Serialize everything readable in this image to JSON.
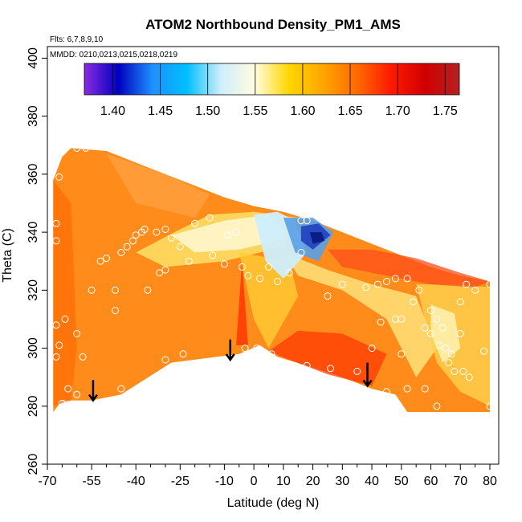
{
  "chart_data": {
    "type": "heatmap",
    "title": "ATOM2 Northbound Density_PM1_AMS",
    "subtitle_flights": "Flts: 6,7,8,9,10",
    "subtitle_dates": "MMDD: 0210,0213,0215,0218,0219",
    "xlabel": "Latitude (deg N)",
    "ylabel": "Theta (C)",
    "xlim": [
      -70,
      83
    ],
    "ylim": [
      260,
      404
    ],
    "x_ticks": [
      {
        "value": -70,
        "label": "-70"
      },
      {
        "value": -55,
        "label": "-55"
      },
      {
        "value": -40,
        "label": "-40"
      },
      {
        "value": -25,
        "label": "-25"
      },
      {
        "value": -10,
        "label": "-10"
      },
      {
        "value": 0,
        "label": "0"
      },
      {
        "value": 10,
        "label": "10"
      },
      {
        "value": 20,
        "label": "20"
      },
      {
        "value": 30,
        "label": "30"
      },
      {
        "value": 40,
        "label": "40"
      },
      {
        "value": 50,
        "label": "50"
      },
      {
        "value": 60,
        "label": "60"
      },
      {
        "value": 70,
        "label": "70"
      },
      {
        "value": 80,
        "label": "80"
      }
    ],
    "x_minor_ticks": [
      -65,
      -60,
      -50,
      -45,
      -35,
      -30,
      -20,
      -15,
      -5,
      5,
      15,
      25,
      35,
      45,
      55,
      65,
      75
    ],
    "y_ticks": [
      {
        "value": 260,
        "label": "260"
      },
      {
        "value": 280,
        "label": "280"
      },
      {
        "value": 300,
        "label": "300"
      },
      {
        "value": 320,
        "label": "320"
      },
      {
        "value": 340,
        "label": "340"
      },
      {
        "value": 360,
        "label": "360"
      },
      {
        "value": 380,
        "label": "380"
      },
      {
        "value": 400,
        "label": "400"
      }
    ],
    "colorbar": {
      "range": [
        1.37,
        1.765
      ],
      "ticks": [
        {
          "value": 1.4,
          "label": "1.40"
        },
        {
          "value": 1.45,
          "label": "1.45"
        },
        {
          "value": 1.5,
          "label": "1.50"
        },
        {
          "value": 1.55,
          "label": "1.55"
        },
        {
          "value": 1.6,
          "label": "1.60"
        },
        {
          "value": 1.65,
          "label": "1.65"
        },
        {
          "value": 1.7,
          "label": "1.70"
        },
        {
          "value": 1.75,
          "label": "1.75"
        }
      ],
      "colors": [
        "#8a2be2",
        "#0000c0",
        "#1e90ff",
        "#00bfff",
        "#cfeefc",
        "#fffde0",
        "#ffd700",
        "#ffa500",
        "#ff6a00",
        "#ff1a00",
        "#d00000",
        "#b22222"
      ]
    },
    "field_fill_color": "#ff8c1a",
    "envelope": {
      "top": [
        [
          -68,
          358
        ],
        [
          -65,
          366
        ],
        [
          -62,
          369
        ],
        [
          -50,
          368
        ],
        [
          -35,
          362
        ],
        [
          -20,
          356
        ],
        [
          -10,
          352
        ],
        [
          0,
          349
        ],
        [
          10,
          347
        ],
        [
          20,
          344
        ],
        [
          30,
          340
        ],
        [
          40,
          336
        ],
        [
          50,
          332
        ],
        [
          60,
          328
        ],
        [
          70,
          325
        ],
        [
          80,
          323
        ]
      ],
      "bottom": [
        [
          80,
          278
        ],
        [
          52,
          278
        ],
        [
          48,
          284
        ],
        [
          40,
          286
        ],
        [
          30,
          290
        ],
        [
          18,
          294
        ],
        [
          8,
          297
        ],
        [
          2,
          301
        ],
        [
          -5,
          298
        ],
        [
          -28,
          295
        ],
        [
          -45,
          284
        ],
        [
          -55,
          282
        ],
        [
          -65,
          282
        ],
        [
          -68,
          278
        ]
      ]
    },
    "patches": [
      {
        "color": "#ffe066",
        "opacity": 0.85,
        "points": [
          [
            -40,
            333
          ],
          [
            -25,
            341
          ],
          [
            -15,
            346
          ],
          [
            0,
            347
          ],
          [
            15,
            345
          ],
          [
            10,
            335
          ],
          [
            -10,
            330
          ],
          [
            -30,
            328
          ]
        ]
      },
      {
        "color": "#fff6cc",
        "opacity": 0.9,
        "points": [
          [
            -28,
            339
          ],
          [
            -10,
            344
          ],
          [
            5,
            346
          ],
          [
            12,
            338
          ],
          [
            -5,
            334
          ],
          [
            -20,
            333
          ]
        ]
      },
      {
        "color": "#ffcc33",
        "opacity": 0.8,
        "points": [
          [
            -5,
            333
          ],
          [
            0,
            310
          ],
          [
            5,
            300
          ],
          [
            15,
            318
          ],
          [
            12,
            330
          ]
        ]
      },
      {
        "color": "#ffe680",
        "opacity": 0.8,
        "points": [
          [
            10,
            333
          ],
          [
            25,
            327
          ],
          [
            40,
            322
          ],
          [
            55,
            318
          ],
          [
            62,
            300
          ],
          [
            55,
            290
          ],
          [
            45,
            310
          ],
          [
            30,
            320
          ],
          [
            15,
            325
          ]
        ]
      },
      {
        "color": "#ffd24d",
        "opacity": 0.8,
        "points": [
          [
            55,
            322
          ],
          [
            70,
            322
          ],
          [
            80,
            321
          ],
          [
            80,
            280
          ],
          [
            70,
            285
          ],
          [
            62,
            295
          ],
          [
            58,
            310
          ]
        ]
      },
      {
        "color": "#fff2b3",
        "opacity": 0.85,
        "points": [
          [
            60,
            315
          ],
          [
            68,
            312
          ],
          [
            70,
            300
          ],
          [
            64,
            295
          ],
          [
            60,
            305
          ]
        ]
      },
      {
        "color": "#ff4d1a",
        "opacity": 0.75,
        "points": [
          [
            25,
            334
          ],
          [
            40,
            334
          ],
          [
            55,
            331
          ],
          [
            70,
            326
          ],
          [
            80,
            323
          ],
          [
            75,
            321
          ],
          [
            60,
            322
          ],
          [
            45,
            325
          ],
          [
            30,
            328
          ]
        ]
      },
      {
        "color": "#ff2a00",
        "opacity": 0.75,
        "points": [
          [
            -6,
            301
          ],
          [
            -4,
            330
          ],
          [
            -2,
            301
          ]
        ]
      },
      {
        "color": "#ff3300",
        "opacity": 0.7,
        "points": [
          [
            5,
            299
          ],
          [
            15,
            306
          ],
          [
            30,
            305
          ],
          [
            45,
            298
          ],
          [
            40,
            287
          ],
          [
            25,
            291
          ],
          [
            12,
            296
          ]
        ]
      },
      {
        "color": "#ff6600",
        "opacity": 0.6,
        "points": [
          [
            -68,
            280
          ],
          [
            -68,
            358
          ],
          [
            -62,
            350
          ],
          [
            -60,
            300
          ],
          [
            -62,
            282
          ]
        ]
      },
      {
        "color": "#ffa64d",
        "opacity": 0.6,
        "points": [
          [
            -50,
            367
          ],
          [
            -30,
            360
          ],
          [
            -15,
            353
          ],
          [
            -20,
            345
          ],
          [
            -40,
            350
          ]
        ]
      },
      {
        "color": "#cfeefc",
        "opacity": 0.95,
        "points": [
          [
            0,
            346
          ],
          [
            8,
            347
          ],
          [
            14,
            344
          ],
          [
            18,
            333
          ],
          [
            10,
            324
          ],
          [
            4,
            330
          ]
        ]
      },
      {
        "color": "#5aa0e6",
        "opacity": 0.9,
        "points": [
          [
            10,
            345
          ],
          [
            20,
            345
          ],
          [
            27,
            340
          ],
          [
            22,
            330
          ],
          [
            14,
            333
          ]
        ]
      },
      {
        "color": "#2040c0",
        "opacity": 0.9,
        "points": [
          [
            16,
            342
          ],
          [
            22,
            343
          ],
          [
            26,
            339
          ],
          [
            20,
            334
          ],
          [
            16,
            337
          ]
        ]
      },
      {
        "color": "#0a1a80",
        "opacity": 0.9,
        "points": [
          [
            19,
            340
          ],
          [
            23,
            340
          ],
          [
            24,
            337
          ],
          [
            20,
            336
          ]
        ]
      }
    ],
    "points": [
      [
        -67,
        343
      ],
      [
        -67,
        337
      ],
      [
        -66,
        359
      ],
      [
        -64,
        369
      ],
      [
        -60,
        369
      ],
      [
        -57,
        369
      ],
      [
        -67,
        308
      ],
      [
        -67,
        297
      ],
      [
        -66,
        301
      ],
      [
        -64,
        310
      ],
      [
        -60,
        305
      ],
      [
        -58,
        297
      ],
      [
        -63,
        286
      ],
      [
        -65,
        281
      ],
      [
        -60,
        284
      ],
      [
        -55,
        320
      ],
      [
        -52,
        330
      ],
      [
        -50,
        331
      ],
      [
        -47,
        320
      ],
      [
        -47,
        313
      ],
      [
        -45,
        333
      ],
      [
        -43,
        335
      ],
      [
        -41,
        337
      ],
      [
        -40,
        339
      ],
      [
        -38,
        340
      ],
      [
        -37,
        341
      ],
      [
        -33,
        340
      ],
      [
        -30,
        341
      ],
      [
        -28,
        338
      ],
      [
        -25,
        335
      ],
      [
        -22,
        330
      ],
      [
        -32,
        326
      ],
      [
        -30,
        327
      ],
      [
        -36,
        320
      ],
      [
        -24,
        298
      ],
      [
        -30,
        296
      ],
      [
        -45,
        286
      ],
      [
        -20,
        343
      ],
      [
        -15,
        345
      ],
      [
        -14,
        332
      ],
      [
        -10,
        329
      ],
      [
        -9,
        339
      ],
      [
        -6,
        340
      ],
      [
        -4,
        328
      ],
      [
        -2,
        325
      ],
      [
        2,
        324
      ],
      [
        5,
        328
      ],
      [
        8,
        323
      ],
      [
        -3,
        300
      ],
      [
        1,
        300
      ],
      [
        6,
        298
      ],
      [
        12,
        294
      ],
      [
        18,
        294
      ],
      [
        26,
        293
      ],
      [
        35,
        292
      ],
      [
        45,
        285
      ],
      [
        52,
        286
      ],
      [
        58,
        286
      ],
      [
        62,
        280
      ],
      [
        68,
        292
      ],
      [
        71,
        292
      ],
      [
        73,
        290
      ],
      [
        78,
        299
      ],
      [
        80,
        322
      ],
      [
        80,
        280
      ],
      [
        12,
        326
      ],
      [
        16,
        333
      ],
      [
        16,
        344
      ],
      [
        18,
        344
      ],
      [
        25,
        318
      ],
      [
        30,
        322
      ],
      [
        38,
        321
      ],
      [
        42,
        322
      ],
      [
        45,
        323
      ],
      [
        48,
        324
      ],
      [
        52,
        324
      ],
      [
        56,
        320
      ],
      [
        50,
        310
      ],
      [
        48,
        310
      ],
      [
        43,
        309
      ],
      [
        60,
        313
      ],
      [
        62,
        310
      ],
      [
        64,
        307
      ],
      [
        60,
        305
      ],
      [
        65,
        300
      ],
      [
        70,
        305
      ],
      [
        66,
        295
      ],
      [
        58,
        307
      ],
      [
        63,
        301
      ],
      [
        72,
        322
      ],
      [
        75,
        320
      ],
      [
        70,
        316
      ],
      [
        54,
        316
      ],
      [
        67,
        298
      ],
      [
        50,
        298
      ],
      [
        40,
        300
      ]
    ],
    "arrows": [
      {
        "lat": -54.5,
        "theta_top": 289,
        "theta_tip": 282
      },
      {
        "lat": -8,
        "theta_top": 303,
        "theta_tip": 296
      },
      {
        "lat": 38.5,
        "theta_top": 295,
        "theta_tip": 287
      }
    ]
  }
}
